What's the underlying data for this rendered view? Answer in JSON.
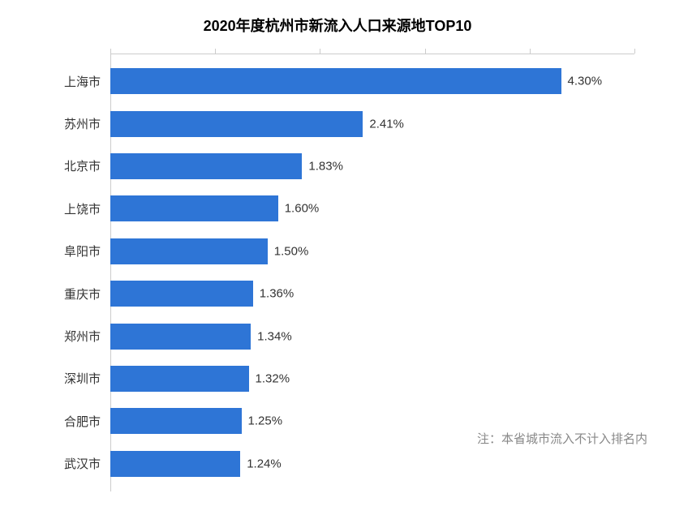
{
  "chart": {
    "type": "bar-horizontal",
    "title": "2020年度杭州市新流入人口来源地TOP10",
    "title_fontsize": 18,
    "bar_color": "#2e75d6",
    "background_color": "#ffffff",
    "axis_color": "#cccccc",
    "text_color": "#333333",
    "footnote_color": "#888888",
    "label_fontsize": 15,
    "value_fontsize": 15,
    "x_max": 5.0,
    "tick_positions_pct": [
      0,
      20,
      40,
      60,
      80,
      100
    ],
    "categories": [
      "上海市",
      "苏州市",
      "北京市",
      "上饶市",
      "阜阳市",
      "重庆市",
      "郑州市",
      "深圳市",
      "合肥市",
      "武汉市"
    ],
    "values": [
      4.3,
      2.41,
      1.83,
      1.6,
      1.5,
      1.36,
      1.34,
      1.32,
      1.25,
      1.24
    ],
    "value_labels": [
      "4.30%",
      "2.41%",
      "1.83%",
      "1.60%",
      "1.50%",
      "1.36%",
      "1.34%",
      "1.32%",
      "1.25%",
      "1.24%"
    ],
    "footnote": "注：本省城市流入不计入排名内"
  }
}
